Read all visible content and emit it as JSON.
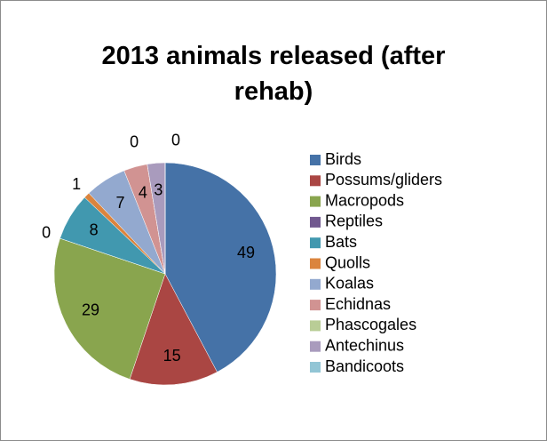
{
  "chart_data": {
    "type": "pie",
    "title": "2013 animals released (after rehab)",
    "categories": [
      "Birds",
      "Possums/gliders",
      "Macropods",
      "Reptiles",
      "Bats",
      "Quolls",
      "Koalas",
      "Echidnas",
      "Phascogales",
      "Antechinus",
      "Bandicoots"
    ],
    "values": [
      49,
      15,
      29,
      0,
      8,
      1,
      7,
      4,
      0,
      3,
      0
    ],
    "colors": [
      "#4572a7",
      "#aa4643",
      "#89a54e",
      "#71588f",
      "#4198af",
      "#db843d",
      "#93a9cf",
      "#d19392",
      "#b9cd96",
      "#a99bbd",
      "#92c5d5"
    ],
    "legend": "right"
  }
}
